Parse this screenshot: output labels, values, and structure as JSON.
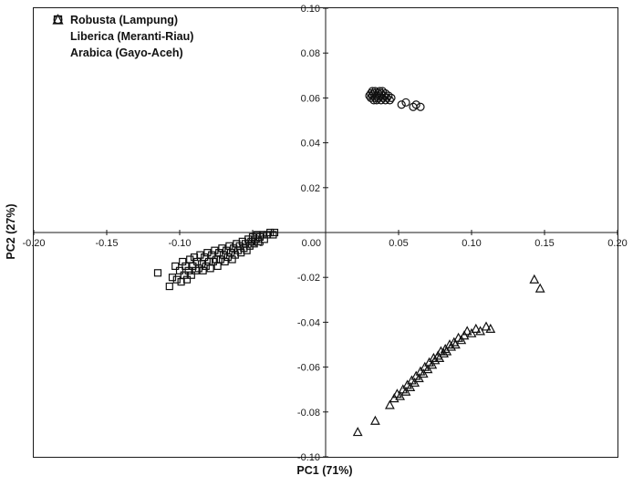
{
  "chart_data": {
    "type": "scatter",
    "title": "",
    "xlabel": "PC1 (71%)",
    "ylabel": "PC2 (27%)",
    "xlim": [
      -0.2,
      0.2
    ],
    "ylim": [
      -0.1,
      0.1
    ],
    "x_ticks": [
      -0.2,
      -0.15,
      -0.1,
      -0.05,
      0.0,
      0.05,
      0.1,
      0.15,
      0.2
    ],
    "y_ticks": [
      0.1,
      0.08,
      0.06,
      0.04,
      0.02,
      0.0,
      -0.02,
      -0.04,
      -0.06,
      -0.08,
      -0.1
    ],
    "grid": false,
    "axes_cross_at_zero": true,
    "legend_position": "top-left-inside",
    "marker_color": "#111111",
    "series": [
      {
        "name": "Robusta (Lampung)",
        "marker": "square",
        "points": [
          [
            -0.115,
            -0.018
          ],
          [
            -0.107,
            -0.024
          ],
          [
            -0.105,
            -0.02
          ],
          [
            -0.103,
            -0.015
          ],
          [
            -0.102,
            -0.021
          ],
          [
            -0.1,
            -0.017
          ],
          [
            -0.099,
            -0.022
          ],
          [
            -0.098,
            -0.013
          ],
          [
            -0.097,
            -0.019
          ],
          [
            -0.096,
            -0.015
          ],
          [
            -0.095,
            -0.021
          ],
          [
            -0.094,
            -0.017
          ],
          [
            -0.093,
            -0.012
          ],
          [
            -0.092,
            -0.019
          ],
          [
            -0.091,
            -0.015
          ],
          [
            -0.09,
            -0.011
          ],
          [
            -0.089,
            -0.017
          ],
          [
            -0.088,
            -0.013
          ],
          [
            -0.087,
            -0.016
          ],
          [
            -0.086,
            -0.01
          ],
          [
            -0.085,
            -0.014
          ],
          [
            -0.084,
            -0.017
          ],
          [
            -0.083,
            -0.011
          ],
          [
            -0.082,
            -0.015
          ],
          [
            -0.081,
            -0.009
          ],
          [
            -0.08,
            -0.013
          ],
          [
            -0.079,
            -0.016
          ],
          [
            -0.078,
            -0.01
          ],
          [
            -0.077,
            -0.013
          ],
          [
            -0.076,
            -0.008
          ],
          [
            -0.075,
            -0.012
          ],
          [
            -0.074,
            -0.015
          ],
          [
            -0.073,
            -0.009
          ],
          [
            -0.072,
            -0.012
          ],
          [
            -0.071,
            -0.007
          ],
          [
            -0.07,
            -0.01
          ],
          [
            -0.069,
            -0.013
          ],
          [
            -0.068,
            -0.008
          ],
          [
            -0.067,
            -0.011
          ],
          [
            -0.066,
            -0.006
          ],
          [
            -0.065,
            -0.009
          ],
          [
            -0.064,
            -0.012
          ],
          [
            -0.063,
            -0.007
          ],
          [
            -0.062,
            -0.01
          ],
          [
            -0.061,
            -0.005
          ],
          [
            -0.06,
            -0.008
          ],
          [
            -0.059,
            -0.006
          ],
          [
            -0.058,
            -0.009
          ],
          [
            -0.057,
            -0.004
          ],
          [
            -0.056,
            -0.007
          ],
          [
            -0.055,
            -0.005
          ],
          [
            -0.054,
            -0.008
          ],
          [
            -0.053,
            -0.003
          ],
          [
            -0.052,
            -0.006
          ],
          [
            -0.051,
            -0.004
          ],
          [
            -0.05,
            -0.002
          ],
          [
            -0.049,
            -0.005
          ],
          [
            -0.048,
            -0.003
          ],
          [
            -0.047,
            -0.001
          ],
          [
            -0.046,
            -0.004
          ],
          [
            -0.045,
            -0.002
          ],
          [
            -0.043,
            -0.001
          ],
          [
            -0.042,
            -0.003
          ],
          [
            -0.04,
            -0.001
          ],
          [
            -0.038,
            0.0
          ],
          [
            -0.036,
            -0.001
          ],
          [
            -0.035,
            0.0
          ]
        ]
      },
      {
        "name": "Liberica (Meranti-Riau)",
        "marker": "circle",
        "points": [
          [
            0.03,
            0.061
          ],
          [
            0.031,
            0.062
          ],
          [
            0.031,
            0.06
          ],
          [
            0.032,
            0.063
          ],
          [
            0.032,
            0.061
          ],
          [
            0.033,
            0.059
          ],
          [
            0.033,
            0.062
          ],
          [
            0.034,
            0.06
          ],
          [
            0.034,
            0.063
          ],
          [
            0.035,
            0.061
          ],
          [
            0.035,
            0.059
          ],
          [
            0.036,
            0.062
          ],
          [
            0.036,
            0.06
          ],
          [
            0.037,
            0.063
          ],
          [
            0.037,
            0.061
          ],
          [
            0.038,
            0.059
          ],
          [
            0.038,
            0.062
          ],
          [
            0.039,
            0.06
          ],
          [
            0.039,
            0.063
          ],
          [
            0.04,
            0.061
          ],
          [
            0.041,
            0.059
          ],
          [
            0.041,
            0.062
          ],
          [
            0.042,
            0.06
          ],
          [
            0.043,
            0.061
          ],
          [
            0.044,
            0.059
          ],
          [
            0.045,
            0.06
          ],
          [
            0.052,
            0.057
          ],
          [
            0.055,
            0.058
          ],
          [
            0.06,
            0.056
          ],
          [
            0.062,
            0.057
          ],
          [
            0.065,
            0.056
          ]
        ]
      },
      {
        "name": "Arabica (Gayo-Aceh)",
        "marker": "triangle",
        "points": [
          [
            0.022,
            -0.089
          ],
          [
            0.034,
            -0.084
          ],
          [
            0.044,
            -0.077
          ],
          [
            0.047,
            -0.074
          ],
          [
            0.049,
            -0.072
          ],
          [
            0.051,
            -0.073
          ],
          [
            0.053,
            -0.07
          ],
          [
            0.055,
            -0.071
          ],
          [
            0.056,
            -0.068
          ],
          [
            0.058,
            -0.069
          ],
          [
            0.059,
            -0.066
          ],
          [
            0.061,
            -0.067
          ],
          [
            0.062,
            -0.064
          ],
          [
            0.064,
            -0.065
          ],
          [
            0.065,
            -0.062
          ],
          [
            0.067,
            -0.063
          ],
          [
            0.068,
            -0.06
          ],
          [
            0.07,
            -0.061
          ],
          [
            0.071,
            -0.058
          ],
          [
            0.073,
            -0.059
          ],
          [
            0.074,
            -0.056
          ],
          [
            0.075,
            -0.057
          ],
          [
            0.077,
            -0.055
          ],
          [
            0.078,
            -0.056
          ],
          [
            0.079,
            -0.053
          ],
          [
            0.081,
            -0.054
          ],
          [
            0.082,
            -0.052
          ],
          [
            0.083,
            -0.053
          ],
          [
            0.085,
            -0.05
          ],
          [
            0.086,
            -0.051
          ],
          [
            0.088,
            -0.049
          ],
          [
            0.089,
            -0.05
          ],
          [
            0.091,
            -0.047
          ],
          [
            0.093,
            -0.048
          ],
          [
            0.095,
            -0.046
          ],
          [
            0.097,
            -0.044
          ],
          [
            0.1,
            -0.045
          ],
          [
            0.103,
            -0.043
          ],
          [
            0.106,
            -0.044
          ],
          [
            0.11,
            -0.042
          ],
          [
            0.113,
            -0.043
          ],
          [
            0.143,
            -0.021
          ],
          [
            0.147,
            -0.025
          ]
        ]
      }
    ]
  }
}
